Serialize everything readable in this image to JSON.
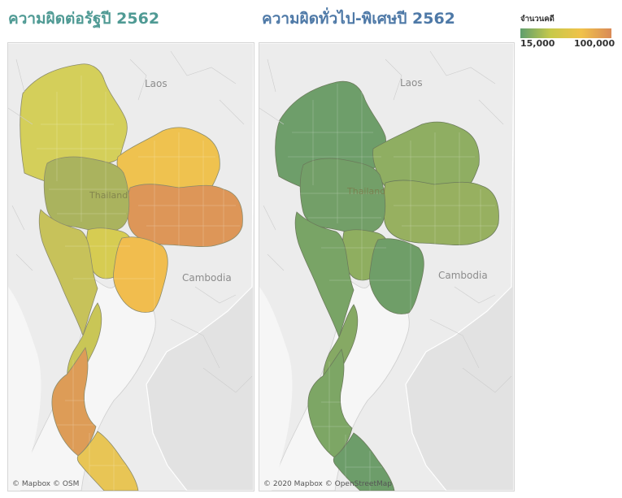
{
  "left_map": {
    "title": "ความผิดต่อรัฐปี 2562",
    "attribution": "© Mapbox © OSM",
    "labels": {
      "laos": "Laos",
      "thailand": "Thailand",
      "cambodia": "Cambodia"
    },
    "regions": [
      {
        "name": "north-upper",
        "color": "#d4cf5a"
      },
      {
        "name": "northeast-upper",
        "color": "#efc24f"
      },
      {
        "name": "northeast-lower",
        "color": "#dd9658"
      },
      {
        "name": "north-lower",
        "color": "#aab35e"
      },
      {
        "name": "central",
        "color": "#d6cc52"
      },
      {
        "name": "west",
        "color": "#c7c25a"
      },
      {
        "name": "east",
        "color": "#f1bd4e"
      },
      {
        "name": "south-upper",
        "color": "#c9c656"
      },
      {
        "name": "south-middle",
        "color": "#dd9c57"
      },
      {
        "name": "south-lower",
        "color": "#e8c555"
      }
    ]
  },
  "right_map": {
    "title": "ความผิดทั่วไป-พิเศษปี 2562",
    "attribution": "© 2020 Mapbox © OpenStreetMap",
    "labels": {
      "laos": "Laos",
      "thailand": "Thailand",
      "cambodia": "Cambodia"
    },
    "regions": [
      {
        "name": "north-upper",
        "color": "#6e9e6a"
      },
      {
        "name": "northeast-upper",
        "color": "#8fae62"
      },
      {
        "name": "northeast-lower",
        "color": "#97b060"
      },
      {
        "name": "north-lower",
        "color": "#739f68"
      },
      {
        "name": "central",
        "color": "#8fae60"
      },
      {
        "name": "west",
        "color": "#79a466"
      },
      {
        "name": "east",
        "color": "#6f9e68"
      },
      {
        "name": "south-upper",
        "color": "#86a964"
      },
      {
        "name": "south-middle",
        "color": "#7da665"
      },
      {
        "name": "south-lower",
        "color": "#6d9d6a"
      }
    ]
  },
  "legend": {
    "title": "จำนวนคดี",
    "min_label": "15,000",
    "max_label": "100,000",
    "gradient_colors": [
      "#5f9e6e",
      "#c7c94a",
      "#f0c24a",
      "#d98a57"
    ]
  }
}
